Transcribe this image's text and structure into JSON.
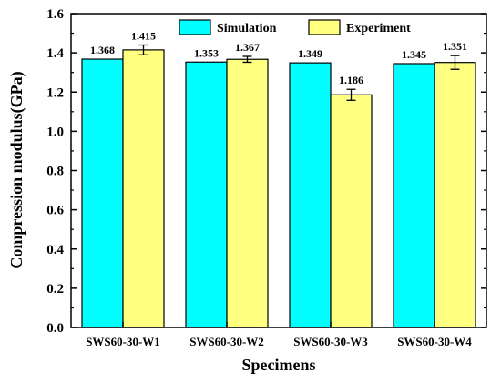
{
  "chart_data": {
    "type": "bar",
    "title": "",
    "xlabel": "Specimens",
    "ylabel": "Compression modulus(GPa)",
    "ylim": [
      0.0,
      1.6
    ],
    "yticks": [
      "0.0",
      "0.2",
      "0.4",
      "0.6",
      "0.8",
      "1.0",
      "1.2",
      "1.4",
      "1.6"
    ],
    "categories": [
      "SWS60-30-W1",
      "SWS60-30-W2",
      "SWS60-30-W3",
      "SWS60-30-W4"
    ],
    "series": [
      {
        "name": "Simulation",
        "color": "#00FFFF",
        "values": [
          1.368,
          1.353,
          1.349,
          1.345
        ],
        "labels": [
          "1.368",
          "1.353",
          "1.349",
          "1.345"
        ]
      },
      {
        "name": "Experiment",
        "color": "#FFFF80",
        "values": [
          1.415,
          1.367,
          1.186,
          1.351
        ],
        "labels": [
          "1.415",
          "1.367",
          "1.186",
          "1.351"
        ],
        "error": [
          0.025,
          0.015,
          0.028,
          0.035
        ]
      }
    ],
    "legend": "top",
    "grid": false
  }
}
